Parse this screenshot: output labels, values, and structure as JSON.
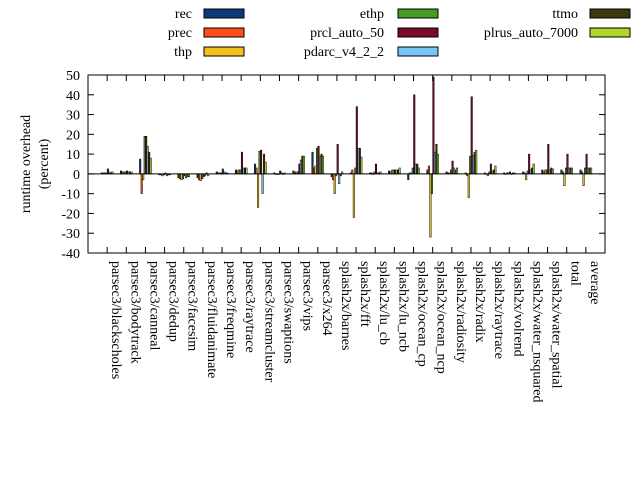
{
  "chart_data": {
    "type": "bar",
    "title": "",
    "xlabel": "",
    "ylabel": "runtime overhead\n(percent)",
    "ylim": [
      -40,
      50
    ],
    "yticks": [
      -40,
      -30,
      -20,
      -10,
      0,
      10,
      20,
      30,
      40,
      50
    ],
    "grid": false,
    "legend_position": "top",
    "categories": [
      "parsec3/blackscholes",
      "parsec3/bodytrack",
      "parsec3/canneal",
      "parsec3/dedup",
      "parsec3/facesim",
      "parsec3/fluidanimate",
      "parsec3/freqmine",
      "parsec3/raytrace",
      "parsec3/streamcluster",
      "parsec3/swaptions",
      "parsec3/vips",
      "parsec3/x264",
      "splash2x/barnes",
      "splash2x/fft",
      "splash2x/lu_cb",
      "splash2x/lu_ncb",
      "splash2x/ocean_cp",
      "splash2x/ocean_ncp",
      "splash2x/radiosity",
      "splash2x/radix",
      "splash2x/raytrace",
      "splash2x/volrend",
      "splash2x/water_nsquared",
      "splash2x/water_spatial",
      "total",
      "average"
    ],
    "series": [
      {
        "name": "rec",
        "color": "#0b3a7a",
        "values": [
          0.5,
          1.5,
          7.5,
          -0.5,
          -2,
          -2,
          1,
          2,
          5,
          0.5,
          1.5,
          11,
          -1.5,
          0.5,
          0.5,
          1.5,
          -3,
          2,
          1,
          0.5,
          0.5,
          0.5,
          1,
          2,
          2,
          2
        ]
      },
      {
        "name": "prec",
        "color": "#ff4d1a",
        "values": [
          0.5,
          1,
          -10,
          -0.5,
          -2.5,
          -3,
          0.5,
          1.5,
          3,
          0,
          1,
          3,
          -3,
          2,
          0.5,
          1,
          0.5,
          4,
          0.5,
          -1,
          0,
          0,
          0.5,
          1,
          1,
          1
        ]
      },
      {
        "name": "thp",
        "color": "#f2c21a",
        "values": [
          0.5,
          1,
          -3,
          -1,
          -3,
          -3.5,
          0.5,
          2,
          -17,
          0,
          1,
          4,
          -10,
          -22,
          0,
          2,
          0.5,
          -32,
          0.5,
          -12,
          -1,
          0.5,
          -3,
          2,
          -6,
          -6
        ]
      },
      {
        "name": "ethp",
        "color": "#4a9a26",
        "values": [
          0.5,
          1,
          19,
          -0.5,
          -2.5,
          -2.5,
          0.5,
          2,
          11.5,
          0,
          1,
          13,
          -1,
          3,
          1,
          2,
          3,
          -10,
          2,
          9,
          1,
          0.5,
          1.5,
          2,
          3,
          3
        ]
      },
      {
        "name": "prcl_auto_50",
        "color": "#7a0a26",
        "values": [
          2.5,
          1.5,
          19,
          0.5,
          -1,
          -1.5,
          2.5,
          11,
          12,
          1.5,
          5,
          14,
          15,
          34,
          5,
          2,
          40,
          49,
          6.5,
          39,
          5,
          1,
          10,
          15,
          10,
          10
        ]
      },
      {
        "name": "pdarc_v4_2_2",
        "color": "#7ac4f5",
        "values": [
          1,
          1,
          14,
          -1,
          -2,
          -1,
          1,
          3,
          -10,
          0.5,
          7,
          9,
          -5,
          13,
          0.5,
          2,
          5,
          11,
          3,
          9.5,
          1.5,
          0,
          2,
          2,
          3,
          3
        ]
      },
      {
        "name": "ttmo",
        "color": "#3a3a0a",
        "values": [
          0.5,
          1,
          11,
          -0.5,
          -1.5,
          0.5,
          0.5,
          3,
          10,
          0,
          9,
          10,
          -1,
          13,
          0.5,
          2,
          5,
          15,
          2,
          11,
          2,
          0.5,
          3,
          3,
          3,
          3
        ]
      },
      {
        "name": "plrus_auto_7000",
        "color": "#b0d82a",
        "values": [
          1,
          1,
          8,
          -0.5,
          -1.5,
          -1,
          0.5,
          3,
          6,
          0.5,
          9,
          9,
          1,
          8.5,
          1,
          3,
          3,
          10,
          3,
          12,
          4,
          0.5,
          5,
          2.5,
          3,
          3
        ]
      }
    ]
  }
}
